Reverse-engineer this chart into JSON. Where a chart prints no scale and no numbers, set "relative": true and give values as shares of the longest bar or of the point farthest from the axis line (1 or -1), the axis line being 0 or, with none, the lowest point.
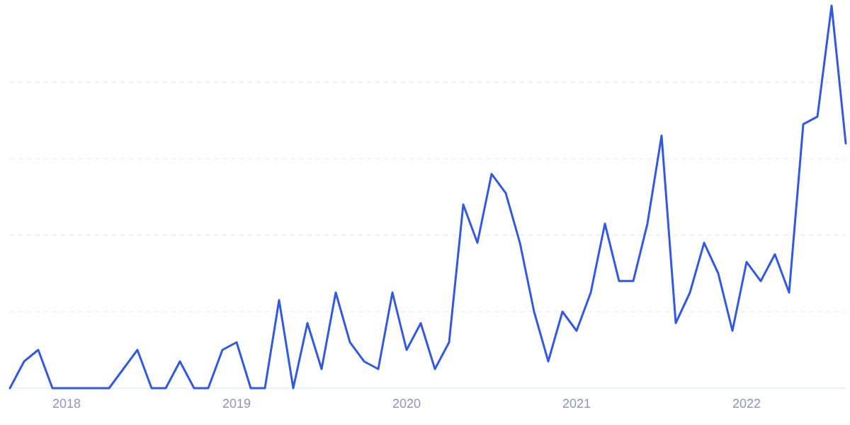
{
  "chart_data": {
    "type": "line",
    "relative": true,
    "x": [
      "2017-09",
      "2017-10",
      "2017-11",
      "2017-12",
      "2018-01",
      "2018-02",
      "2018-03",
      "2018-04",
      "2018-05",
      "2018-06",
      "2018-07",
      "2018-08",
      "2018-09",
      "2018-10",
      "2018-11",
      "2018-12",
      "2019-01",
      "2019-02",
      "2019-03",
      "2019-04",
      "2019-05",
      "2019-06",
      "2019-07",
      "2019-08",
      "2019-09",
      "2019-10",
      "2019-11",
      "2019-12",
      "2020-01",
      "2020-02",
      "2020-03",
      "2020-04",
      "2020-05",
      "2020-06",
      "2020-07",
      "2020-08",
      "2020-09",
      "2020-10",
      "2020-11",
      "2020-12",
      "2021-01",
      "2021-02",
      "2021-03",
      "2021-04",
      "2021-05",
      "2021-06",
      "2021-07",
      "2021-08",
      "2021-09",
      "2021-10",
      "2021-11",
      "2021-12",
      "2022-01",
      "2022-02",
      "2022-03",
      "2022-04",
      "2022-05",
      "2022-06",
      "2022-07",
      "2022-08"
    ],
    "series": [
      {
        "color": "#3359e0",
        "values": [
          0,
          0.07,
          0.1,
          0,
          0,
          0,
          0,
          0,
          0.05,
          0.1,
          0,
          0,
          0.07,
          0,
          0,
          0.1,
          0.12,
          0,
          0,
          0.23,
          0,
          0.17,
          0.05,
          0.25,
          0.12,
          0.07,
          0.05,
          0.25,
          0.1,
          0.17,
          0.05,
          0.12,
          0.48,
          0.38,
          0.56,
          0.51,
          0.38,
          0.2,
          0.07,
          0.2,
          0.15,
          0.25,
          0.43,
          0.28,
          0.28,
          0.43,
          0.66,
          0.17,
          0.25,
          0.38,
          0.3,
          0.15,
          0.33,
          0.28,
          0.35,
          0.25,
          0.69,
          0.71,
          1,
          0.64
        ]
      }
    ],
    "xlim": [
      "2017-09",
      "2022-08"
    ],
    "xticks": [
      "2018",
      "2019",
      "2020",
      "2021",
      "2022"
    ],
    "tick_labels": "x",
    "grid": "y",
    "marker": "none",
    "line_style": "solid"
  }
}
